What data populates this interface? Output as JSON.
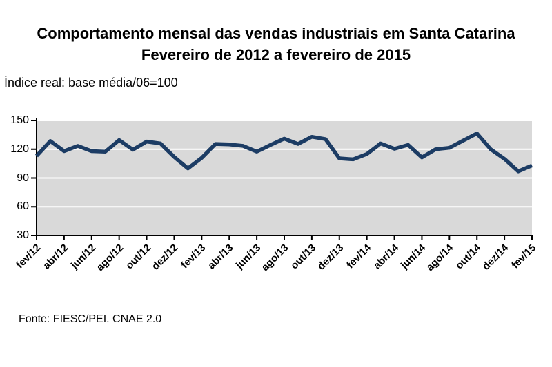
{
  "title_line1": "Comportamento mensal das vendas industriais em Santa Catarina",
  "title_line2": "Fevereiro de 2012 a fevereiro de 2015",
  "subtitle": "Índice real: base média/06=100",
  "source": "Fonte: FIESC/PEI. CNAE 2.0",
  "chart_data": {
    "type": "line",
    "title": "Comportamento mensal das vendas industriais em Santa Catarina — Fevereiro de 2012 a fevereiro de 2015",
    "subtitle": "Índice real: base média/06=100",
    "categories": [
      "fev/12",
      "mar/12",
      "abr/12",
      "mai/12",
      "jun/12",
      "jul/12",
      "ago/12",
      "set/12",
      "out/12",
      "nov/12",
      "dez/12",
      "jan/13",
      "fev/13",
      "mar/13",
      "abr/13",
      "mai/13",
      "jun/13",
      "jul/13",
      "ago/13",
      "set/13",
      "out/13",
      "nov/13",
      "dez/13",
      "jan/14",
      "fev/14",
      "mar/14",
      "abr/14",
      "mai/14",
      "jun/14",
      "jul/14",
      "ago/14",
      "set/14",
      "out/14",
      "nov/14",
      "dez/14",
      "jan/15",
      "fev/15"
    ],
    "values": [
      113,
      128.5,
      118,
      123.5,
      118,
      117.5,
      129.5,
      119.5,
      128,
      126,
      112,
      100,
      111,
      125.5,
      125,
      123.5,
      117.5,
      124.5,
      131,
      125.5,
      133,
      130.5,
      110.5,
      109.5,
      115,
      126,
      120.5,
      124.5,
      111.5,
      120,
      121.5,
      129,
      136.5,
      120,
      110,
      97,
      103
    ],
    "x_tick_label_every": 2,
    "xlabel": "",
    "ylabel": "",
    "ylim": [
      30,
      150
    ],
    "yticks": [
      30,
      60,
      90,
      120,
      150
    ],
    "grid": true,
    "legend": "none",
    "colors": {
      "line": "#1c3c64",
      "plot_bg": "#d9d9d9",
      "gridline": "#ffffff",
      "axis": "#000000",
      "text": "#000000"
    }
  }
}
